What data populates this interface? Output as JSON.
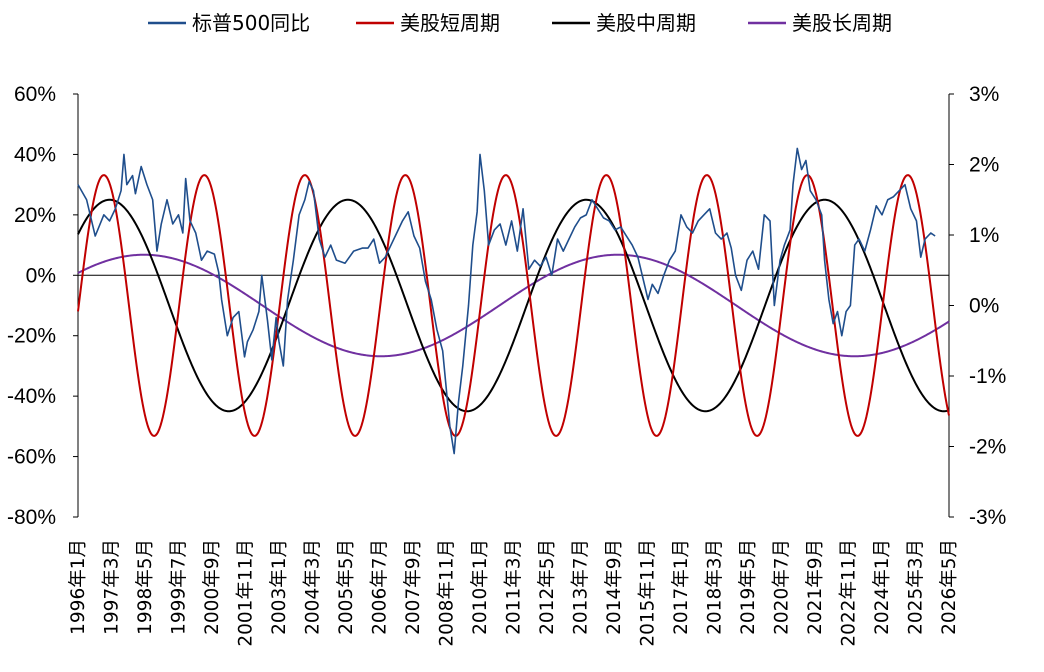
{
  "chart_data": {
    "type": "line",
    "x_range": [
      "1996-01",
      "2026-05"
    ],
    "left_axis": {
      "ylim": [
        -80,
        60
      ],
      "ticks": [
        "60%",
        "40%",
        "20%",
        "0%",
        "-20%",
        "-40%",
        "-60%",
        "-80%"
      ]
    },
    "right_axis": {
      "ylim": [
        -3,
        3
      ],
      "ticks": [
        "3%",
        "2%",
        "1%",
        "0%",
        "-1%",
        "-2%",
        "-3%"
      ]
    },
    "x_ticks": [
      "1996年1月",
      "1997年3月",
      "1998年5月",
      "1999年7月",
      "2000年9月",
      "2001年11月",
      "2003年1月",
      "2004年3月",
      "2005年5月",
      "2006年7月",
      "2007年9月",
      "2008年11月",
      "2010年1月",
      "2011年3月",
      "2012年5月",
      "2013年7月",
      "2014年9月",
      "2015年11月",
      "2017年1月",
      "2018年3月",
      "2019年5月",
      "2020年7月",
      "2021年9月",
      "2022年11月",
      "2024年1月",
      "2025年3月",
      "2026年5月"
    ],
    "grid": false,
    "legend_position": "top",
    "series": [
      {
        "name": "标普500同比",
        "axis": "left",
        "color": "#1F4E8C",
        "points": [
          [
            1996.0,
            30
          ],
          [
            1996.3,
            25
          ],
          [
            1996.6,
            13
          ],
          [
            1996.9,
            20
          ],
          [
            1997.1,
            18
          ],
          [
            1997.3,
            22
          ],
          [
            1997.5,
            28
          ],
          [
            1997.6,
            40
          ],
          [
            1997.7,
            30
          ],
          [
            1997.9,
            33
          ],
          [
            1998.0,
            27
          ],
          [
            1998.2,
            36
          ],
          [
            1998.4,
            30
          ],
          [
            1998.6,
            25
          ],
          [
            1998.75,
            8
          ],
          [
            1998.9,
            17
          ],
          [
            1999.1,
            25
          ],
          [
            1999.3,
            17
          ],
          [
            1999.5,
            20
          ],
          [
            1999.65,
            14
          ],
          [
            1999.75,
            32
          ],
          [
            1999.9,
            18
          ],
          [
            2000.1,
            14
          ],
          [
            2000.3,
            5
          ],
          [
            2000.5,
            8
          ],
          [
            2000.75,
            7
          ],
          [
            2000.9,
            1
          ],
          [
            2001.0,
            -8
          ],
          [
            2001.2,
            -20
          ],
          [
            2001.4,
            -14
          ],
          [
            2001.6,
            -12
          ],
          [
            2001.8,
            -27
          ],
          [
            2001.9,
            -22
          ],
          [
            2002.1,
            -18
          ],
          [
            2002.3,
            -12
          ],
          [
            2002.4,
            0
          ],
          [
            2002.6,
            -15
          ],
          [
            2002.75,
            -28
          ],
          [
            2002.9,
            -14
          ],
          [
            2003.0,
            -22
          ],
          [
            2003.15,
            -30
          ],
          [
            2003.3,
            -8
          ],
          [
            2003.5,
            5
          ],
          [
            2003.7,
            20
          ],
          [
            2003.9,
            25
          ],
          [
            2004.05,
            31
          ],
          [
            2004.2,
            28
          ],
          [
            2004.4,
            12
          ],
          [
            2004.6,
            6
          ],
          [
            2004.8,
            10
          ],
          [
            2005.0,
            5
          ],
          [
            2005.3,
            4
          ],
          [
            2005.6,
            8
          ],
          [
            2005.9,
            9
          ],
          [
            2006.1,
            9
          ],
          [
            2006.3,
            12
          ],
          [
            2006.5,
            4
          ],
          [
            2006.7,
            6
          ],
          [
            2006.9,
            10
          ],
          [
            2007.1,
            14
          ],
          [
            2007.3,
            18
          ],
          [
            2007.5,
            21
          ],
          [
            2007.7,
            13
          ],
          [
            2007.9,
            9
          ],
          [
            2008.1,
            -2
          ],
          [
            2008.3,
            -8
          ],
          [
            2008.5,
            -18
          ],
          [
            2008.7,
            -25
          ],
          [
            2008.85,
            -40
          ],
          [
            2008.95,
            -50
          ],
          [
            2009.1,
            -59
          ],
          [
            2009.25,
            -42
          ],
          [
            2009.4,
            -30
          ],
          [
            2009.6,
            -10
          ],
          [
            2009.75,
            10
          ],
          [
            2009.9,
            21
          ],
          [
            2010.0,
            40
          ],
          [
            2010.15,
            28
          ],
          [
            2010.3,
            10
          ],
          [
            2010.5,
            15
          ],
          [
            2010.7,
            17
          ],
          [
            2010.9,
            10
          ],
          [
            2011.1,
            18
          ],
          [
            2011.3,
            8
          ],
          [
            2011.5,
            22
          ],
          [
            2011.7,
            2
          ],
          [
            2011.9,
            5
          ],
          [
            2012.1,
            3
          ],
          [
            2012.3,
            6
          ],
          [
            2012.5,
            0
          ],
          [
            2012.7,
            12
          ],
          [
            2012.9,
            8
          ],
          [
            2013.1,
            12
          ],
          [
            2013.3,
            16
          ],
          [
            2013.5,
            19
          ],
          [
            2013.7,
            20
          ],
          [
            2013.9,
            25
          ],
          [
            2014.1,
            22
          ],
          [
            2014.3,
            19
          ],
          [
            2014.5,
            18
          ],
          [
            2014.7,
            15
          ],
          [
            2014.9,
            16
          ],
          [
            2015.1,
            13
          ],
          [
            2015.3,
            10
          ],
          [
            2015.5,
            6
          ],
          [
            2015.7,
            -2
          ],
          [
            2015.85,
            -8
          ],
          [
            2016.0,
            -3
          ],
          [
            2016.2,
            -6
          ],
          [
            2016.4,
            0
          ],
          [
            2016.6,
            5
          ],
          [
            2016.8,
            8
          ],
          [
            2017.0,
            20
          ],
          [
            2017.2,
            16
          ],
          [
            2017.4,
            14
          ],
          [
            2017.6,
            18
          ],
          [
            2017.8,
            20
          ],
          [
            2018.0,
            22
          ],
          [
            2018.2,
            14
          ],
          [
            2018.4,
            12
          ],
          [
            2018.6,
            14
          ],
          [
            2018.75,
            9
          ],
          [
            2018.9,
            0
          ],
          [
            2019.1,
            -5
          ],
          [
            2019.3,
            5
          ],
          [
            2019.5,
            8
          ],
          [
            2019.7,
            2
          ],
          [
            2019.9,
            20
          ],
          [
            2020.1,
            18
          ],
          [
            2020.25,
            -10
          ],
          [
            2020.45,
            5
          ],
          [
            2020.6,
            10
          ],
          [
            2020.8,
            15
          ],
          [
            2020.9,
            30
          ],
          [
            2021.05,
            42
          ],
          [
            2021.2,
            35
          ],
          [
            2021.35,
            38
          ],
          [
            2021.5,
            28
          ],
          [
            2021.7,
            25
          ],
          [
            2021.9,
            20
          ],
          [
            2022.0,
            5
          ],
          [
            2022.15,
            -8
          ],
          [
            2022.3,
            -16
          ],
          [
            2022.45,
            -12
          ],
          [
            2022.6,
            -20
          ],
          [
            2022.75,
            -12
          ],
          [
            2022.9,
            -10
          ],
          [
            2023.05,
            10
          ],
          [
            2023.2,
            12
          ],
          [
            2023.4,
            8
          ],
          [
            2023.6,
            15
          ],
          [
            2023.8,
            23
          ],
          [
            2024.0,
            20
          ],
          [
            2024.2,
            25
          ],
          [
            2024.4,
            26
          ],
          [
            2024.6,
            28
          ],
          [
            2024.8,
            30
          ],
          [
            2025.0,
            22
          ],
          [
            2025.2,
            18
          ],
          [
            2025.35,
            6
          ],
          [
            2025.5,
            12
          ],
          [
            2025.7,
            14
          ],
          [
            2025.85,
            13
          ]
        ]
      },
      {
        "name": "美股短周期",
        "axis": "right",
        "color": "#C00000",
        "cycle": {
          "amplitude": 1.85,
          "period_years": 3.5,
          "peak_year": 1996.9,
          "baseline": 0
        }
      },
      {
        "name": "美股中周期",
        "axis": "right",
        "color": "#000000",
        "cycle": {
          "amplitude": 1.5,
          "period_years": 8.3,
          "peak_year": 1997.1,
          "baseline": 0
        }
      },
      {
        "name": "美股长周期",
        "axis": "right",
        "color": "#7030A0",
        "cycle": {
          "amplitude": 0.72,
          "period_years": 16.5,
          "peak_year": 1998.3,
          "baseline": 0
        }
      }
    ]
  }
}
